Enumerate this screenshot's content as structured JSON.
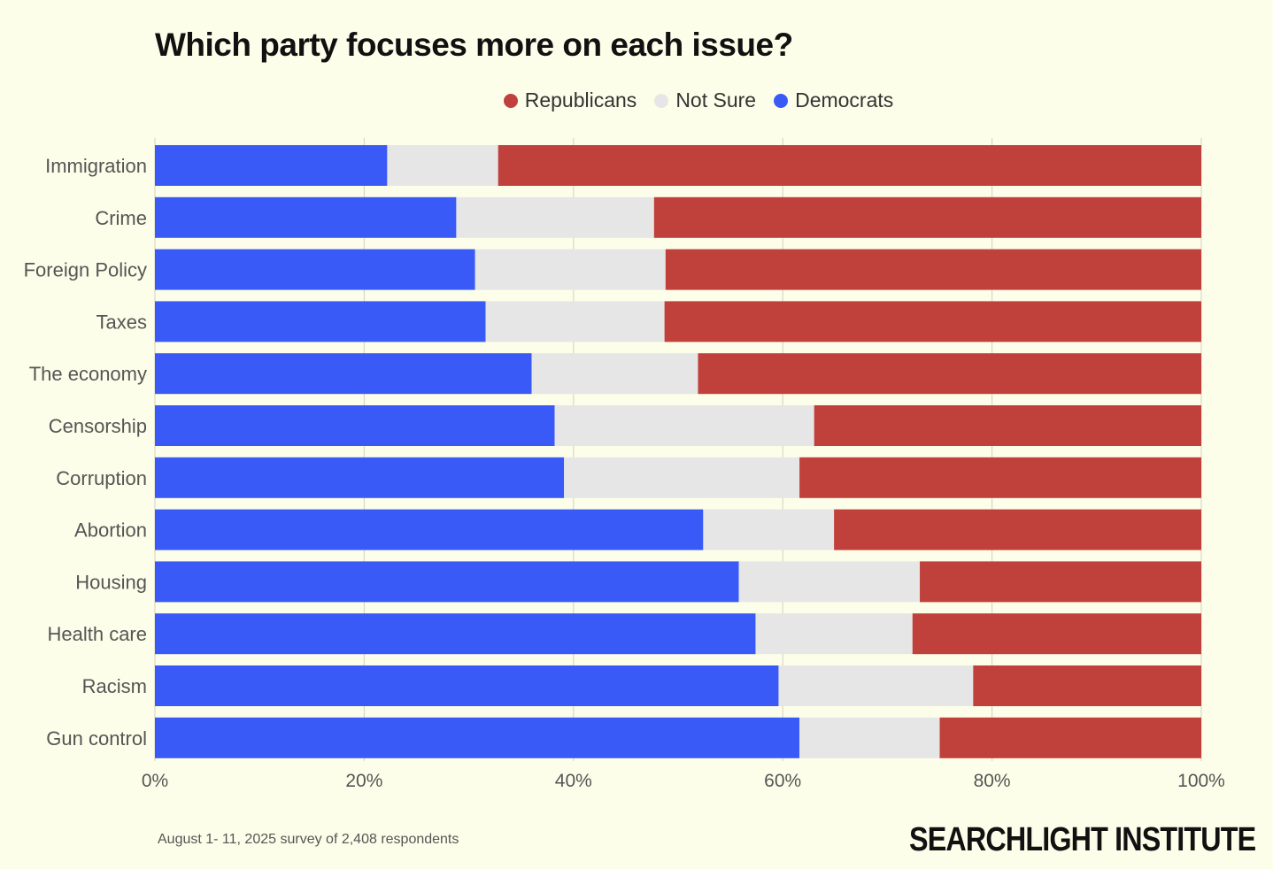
{
  "chart_data": {
    "type": "bar",
    "stacked": true,
    "orientation": "horizontal",
    "title": "Which party focuses more on each issue?",
    "categories": [
      "Immigration",
      "Crime",
      "Foreign Policy",
      "Taxes",
      "The economy",
      "Censorship",
      "Corruption",
      "Abortion",
      "Housing",
      "Health care",
      "Racism",
      "Gun control"
    ],
    "series": [
      {
        "name": "Democrats",
        "color": "#3a5af8",
        "values": [
          22.2,
          28.8,
          30.6,
          31.6,
          36.0,
          38.2,
          39.1,
          52.4,
          55.8,
          57.4,
          59.6,
          61.6
        ]
      },
      {
        "name": "Not Sure",
        "color": "#e6e6e6",
        "values": [
          10.6,
          18.9,
          18.2,
          17.1,
          15.9,
          24.8,
          22.5,
          12.5,
          17.3,
          15.0,
          18.6,
          13.4
        ]
      },
      {
        "name": "Republicans",
        "color": "#c0403c",
        "values": [
          67.2,
          52.3,
          51.2,
          51.3,
          48.1,
          37.0,
          38.4,
          35.1,
          26.9,
          27.6,
          21.8,
          25.0
        ]
      }
    ],
    "legend": [
      {
        "label": "Republicans",
        "color": "#c0403c"
      },
      {
        "label": "Not Sure",
        "color": "#e6e6e6"
      },
      {
        "label": "Democrats",
        "color": "#3a5af8"
      }
    ],
    "legend_position": "top-center",
    "xlim": [
      0,
      100
    ],
    "xticks": [
      "0%",
      "20%",
      "40%",
      "60%",
      "80%",
      "100%"
    ],
    "xlabel": "",
    "ylabel": "",
    "grid": true
  },
  "footnote": "August 1- 11, 2025 survey of 2,408 respondents",
  "brand": "SEARCHLIGHT INSTITUTE"
}
